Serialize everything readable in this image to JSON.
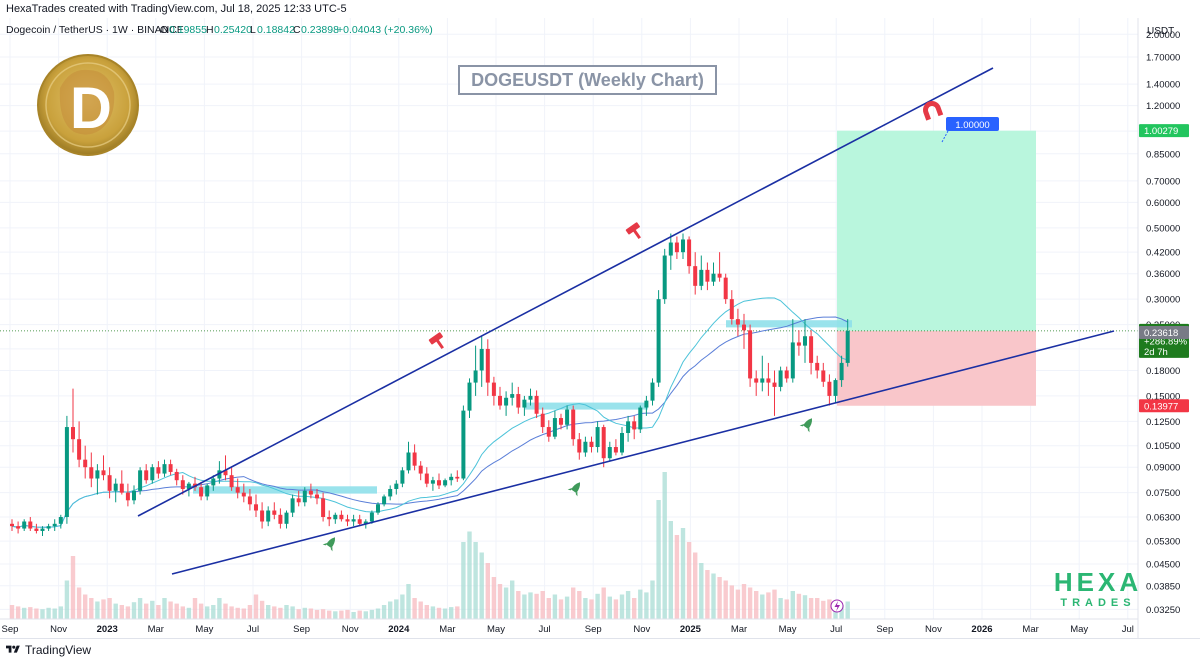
{
  "header": {
    "credit": "HexaTrades created with TradingView.com, Jul 18, 2025 12:33 UTC-5"
  },
  "legend": {
    "symbol": "Dogecoin / TetherUS · 1W · BINANCE",
    "open_label": "O",
    "open": "0.19855",
    "high_label": "H",
    "high": "0.25420",
    "low_label": "L",
    "low": "0.18842",
    "close_label": "C",
    "close": "0.23898",
    "change": "+0.04043 (+20.36%)"
  },
  "chart_title": "DOGEUSDT (Weekly Chart)",
  "currency": "USDT",
  "watermark": {
    "line1": "HEXA",
    "line2": "TRADES"
  },
  "logo_letter": "D",
  "target_label": "1.00000",
  "colors": {
    "up": "#089981",
    "down": "#f23645",
    "trendline": "#1a2fa3",
    "zone": "#8fe0ea",
    "profit": "#b9f6dd",
    "loss": "#f9c6ca",
    "ma_long": "#5b7fd8",
    "ma_short": "#4cc3d9"
  },
  "footer": {
    "brand": "TradingView"
  },
  "chart_data": {
    "type": "candlestick",
    "y_scale": "log",
    "ylim": [
      0.031,
      2.2
    ],
    "y_ticks": [
      "2.00000",
      "1.70000",
      "1.40000",
      "1.20000",
      "1.00000",
      "0.85000",
      "0.70000",
      "0.60000",
      "0.50000",
      "0.42000",
      "0.36000",
      "0.30000",
      "0.25000",
      "0.21000",
      "0.18000",
      "0.15000",
      "0.12500",
      "0.10500",
      "0.09000",
      "0.07500",
      "0.06300",
      "0.05300",
      "0.04500",
      "0.03850",
      "0.03250"
    ],
    "x_ticks": [
      "Sep",
      "Nov",
      "2023",
      "Mar",
      "May",
      "Jul",
      "Sep",
      "Nov",
      "2024",
      "Mar",
      "May",
      "Jul",
      "Sep",
      "Nov",
      "2025",
      "Mar",
      "May",
      "Jul",
      "Sep",
      "Nov",
      "2026",
      "Mar",
      "May",
      "Jul"
    ],
    "price_labels": [
      {
        "value": 1.00279,
        "text": "1.00279",
        "color": "#22c55e"
      },
      {
        "value": 0.23898,
        "text": "0.23898",
        "sub1": "+286.89%",
        "sub2": "2d 7h",
        "color": "#1e7b1e"
      },
      {
        "value": 0.23618,
        "text": "0.23618",
        "color": "#787b86"
      },
      {
        "value": 0.13977,
        "text": "0.13977",
        "color": "#f23645"
      }
    ],
    "trade": {
      "entry": 0.23898,
      "target": 1.00279,
      "stop": 0.13977
    },
    "candles": [
      [
        0.06,
        0.062,
        0.057,
        0.059
      ],
      [
        0.059,
        0.061,
        0.056,
        0.058
      ],
      [
        0.058,
        0.062,
        0.057,
        0.061
      ],
      [
        0.061,
        0.063,
        0.057,
        0.058
      ],
      [
        0.058,
        0.06,
        0.056,
        0.057
      ],
      [
        0.057,
        0.059,
        0.055,
        0.058
      ],
      [
        0.058,
        0.06,
        0.057,
        0.059
      ],
      [
        0.059,
        0.062,
        0.057,
        0.06
      ],
      [
        0.06,
        0.064,
        0.058,
        0.063
      ],
      [
        0.063,
        0.13,
        0.06,
        0.12
      ],
      [
        0.12,
        0.158,
        0.1,
        0.11
      ],
      [
        0.11,
        0.125,
        0.09,
        0.095
      ],
      [
        0.095,
        0.105,
        0.083,
        0.09
      ],
      [
        0.09,
        0.1,
        0.078,
        0.083
      ],
      [
        0.083,
        0.092,
        0.074,
        0.088
      ],
      [
        0.088,
        0.098,
        0.082,
        0.085
      ],
      [
        0.085,
        0.09,
        0.072,
        0.076
      ],
      [
        0.076,
        0.083,
        0.07,
        0.08
      ],
      [
        0.08,
        0.088,
        0.074,
        0.075
      ],
      [
        0.075,
        0.08,
        0.068,
        0.071
      ],
      [
        0.071,
        0.079,
        0.069,
        0.076
      ],
      [
        0.076,
        0.09,
        0.074,
        0.088
      ],
      [
        0.088,
        0.092,
        0.08,
        0.082
      ],
      [
        0.082,
        0.092,
        0.08,
        0.09
      ],
      [
        0.09,
        0.094,
        0.083,
        0.086
      ],
      [
        0.086,
        0.095,
        0.084,
        0.092
      ],
      [
        0.092,
        0.095,
        0.085,
        0.087
      ],
      [
        0.087,
        0.089,
        0.079,
        0.082
      ],
      [
        0.082,
        0.085,
        0.074,
        0.077
      ],
      [
        0.077,
        0.081,
        0.073,
        0.08
      ],
      [
        0.08,
        0.084,
        0.076,
        0.078
      ],
      [
        0.078,
        0.081,
        0.071,
        0.073
      ],
      [
        0.073,
        0.08,
        0.071,
        0.079
      ],
      [
        0.079,
        0.085,
        0.076,
        0.083
      ],
      [
        0.083,
        0.094,
        0.08,
        0.088
      ],
      [
        0.088,
        0.098,
        0.082,
        0.085
      ],
      [
        0.085,
        0.09,
        0.076,
        0.078
      ],
      [
        0.078,
        0.083,
        0.072,
        0.075
      ],
      [
        0.075,
        0.08,
        0.07,
        0.073
      ],
      [
        0.073,
        0.077,
        0.066,
        0.069
      ],
      [
        0.069,
        0.074,
        0.063,
        0.066
      ],
      [
        0.066,
        0.07,
        0.058,
        0.061
      ],
      [
        0.061,
        0.068,
        0.059,
        0.066
      ],
      [
        0.066,
        0.07,
        0.062,
        0.064
      ],
      [
        0.064,
        0.067,
        0.058,
        0.06
      ],
      [
        0.06,
        0.066,
        0.058,
        0.065
      ],
      [
        0.065,
        0.074,
        0.063,
        0.072
      ],
      [
        0.072,
        0.076,
        0.068,
        0.07
      ],
      [
        0.07,
        0.078,
        0.068,
        0.076
      ],
      [
        0.076,
        0.08,
        0.072,
        0.074
      ],
      [
        0.074,
        0.077,
        0.069,
        0.072
      ],
      [
        0.072,
        0.075,
        0.061,
        0.063
      ],
      [
        0.063,
        0.066,
        0.059,
        0.062
      ],
      [
        0.062,
        0.065,
        0.06,
        0.064
      ],
      [
        0.064,
        0.066,
        0.061,
        0.062
      ],
      [
        0.062,
        0.064,
        0.059,
        0.061
      ],
      [
        0.061,
        0.064,
        0.059,
        0.062
      ],
      [
        0.062,
        0.064,
        0.059,
        0.06
      ],
      [
        0.06,
        0.062,
        0.058,
        0.061
      ],
      [
        0.061,
        0.066,
        0.06,
        0.065
      ],
      [
        0.065,
        0.07,
        0.064,
        0.069
      ],
      [
        0.069,
        0.074,
        0.068,
        0.073
      ],
      [
        0.073,
        0.079,
        0.071,
        0.077
      ],
      [
        0.077,
        0.082,
        0.074,
        0.08
      ],
      [
        0.08,
        0.09,
        0.078,
        0.088
      ],
      [
        0.088,
        0.108,
        0.086,
        0.1
      ],
      [
        0.1,
        0.106,
        0.088,
        0.091
      ],
      [
        0.091,
        0.094,
        0.082,
        0.086
      ],
      [
        0.086,
        0.09,
        0.078,
        0.08
      ],
      [
        0.08,
        0.084,
        0.076,
        0.082
      ],
      [
        0.082,
        0.086,
        0.077,
        0.079
      ],
      [
        0.079,
        0.083,
        0.078,
        0.082
      ],
      [
        0.082,
        0.086,
        0.079,
        0.084
      ],
      [
        0.084,
        0.088,
        0.081,
        0.083
      ],
      [
        0.083,
        0.14,
        0.082,
        0.135
      ],
      [
        0.135,
        0.17,
        0.128,
        0.165
      ],
      [
        0.165,
        0.215,
        0.15,
        0.18
      ],
      [
        0.18,
        0.23,
        0.16,
        0.21
      ],
      [
        0.21,
        0.225,
        0.15,
        0.165
      ],
      [
        0.165,
        0.172,
        0.14,
        0.15
      ],
      [
        0.15,
        0.16,
        0.136,
        0.14
      ],
      [
        0.14,
        0.155,
        0.13,
        0.148
      ],
      [
        0.148,
        0.165,
        0.14,
        0.152
      ],
      [
        0.152,
        0.16,
        0.132,
        0.138
      ],
      [
        0.138,
        0.15,
        0.13,
        0.146
      ],
      [
        0.146,
        0.158,
        0.14,
        0.15
      ],
      [
        0.15,
        0.156,
        0.128,
        0.132
      ],
      [
        0.132,
        0.138,
        0.115,
        0.12
      ],
      [
        0.12,
        0.126,
        0.108,
        0.112
      ],
      [
        0.112,
        0.135,
        0.11,
        0.128
      ],
      [
        0.128,
        0.132,
        0.118,
        0.122
      ],
      [
        0.122,
        0.14,
        0.118,
        0.136
      ],
      [
        0.136,
        0.14,
        0.105,
        0.11
      ],
      [
        0.11,
        0.115,
        0.095,
        0.1
      ],
      [
        0.1,
        0.112,
        0.097,
        0.108
      ],
      [
        0.108,
        0.112,
        0.1,
        0.104
      ],
      [
        0.104,
        0.125,
        0.1,
        0.12
      ],
      [
        0.12,
        0.122,
        0.09,
        0.096
      ],
      [
        0.096,
        0.108,
        0.094,
        0.104
      ],
      [
        0.104,
        0.11,
        0.098,
        0.1
      ],
      [
        0.1,
        0.12,
        0.098,
        0.115
      ],
      [
        0.115,
        0.13,
        0.108,
        0.125
      ],
      [
        0.125,
        0.13,
        0.11,
        0.118
      ],
      [
        0.118,
        0.14,
        0.115,
        0.138
      ],
      [
        0.138,
        0.15,
        0.13,
        0.145
      ],
      [
        0.145,
        0.17,
        0.14,
        0.165
      ],
      [
        0.165,
        0.32,
        0.16,
        0.3
      ],
      [
        0.3,
        0.43,
        0.29,
        0.41
      ],
      [
        0.41,
        0.48,
        0.37,
        0.45
      ],
      [
        0.45,
        0.47,
        0.4,
        0.42
      ],
      [
        0.42,
        0.48,
        0.4,
        0.46
      ],
      [
        0.46,
        0.47,
        0.36,
        0.38
      ],
      [
        0.38,
        0.42,
        0.31,
        0.33
      ],
      [
        0.33,
        0.41,
        0.32,
        0.37
      ],
      [
        0.37,
        0.39,
        0.32,
        0.34
      ],
      [
        0.34,
        0.39,
        0.33,
        0.36
      ],
      [
        0.36,
        0.42,
        0.34,
        0.35
      ],
      [
        0.35,
        0.36,
        0.29,
        0.3
      ],
      [
        0.3,
        0.32,
        0.25,
        0.26
      ],
      [
        0.26,
        0.28,
        0.23,
        0.25
      ],
      [
        0.25,
        0.27,
        0.21,
        0.24
      ],
      [
        0.24,
        0.25,
        0.16,
        0.17
      ],
      [
        0.17,
        0.18,
        0.15,
        0.165
      ],
      [
        0.165,
        0.2,
        0.155,
        0.17
      ],
      [
        0.17,
        0.19,
        0.15,
        0.165
      ],
      [
        0.165,
        0.18,
        0.13,
        0.16
      ],
      [
        0.16,
        0.185,
        0.155,
        0.18
      ],
      [
        0.18,
        0.185,
        0.165,
        0.17
      ],
      [
        0.17,
        0.26,
        0.165,
        0.22
      ],
      [
        0.22,
        0.24,
        0.2,
        0.215
      ],
      [
        0.215,
        0.26,
        0.19,
        0.23
      ],
      [
        0.23,
        0.24,
        0.175,
        0.19
      ],
      [
        0.19,
        0.2,
        0.17,
        0.18
      ],
      [
        0.18,
        0.19,
        0.16,
        0.166
      ],
      [
        0.166,
        0.175,
        0.14,
        0.15
      ],
      [
        0.15,
        0.17,
        0.142,
        0.168
      ],
      [
        0.168,
        0.2,
        0.16,
        0.19
      ],
      [
        0.19,
        0.26,
        0.185,
        0.239
      ]
    ],
    "volumes": [
      0.2,
      0.18,
      0.16,
      0.17,
      0.15,
      0.14,
      0.16,
      0.15,
      0.18,
      0.55,
      0.9,
      0.45,
      0.35,
      0.3,
      0.25,
      0.28,
      0.3,
      0.22,
      0.2,
      0.18,
      0.24,
      0.3,
      0.22,
      0.26,
      0.2,
      0.3,
      0.25,
      0.22,
      0.18,
      0.16,
      0.3,
      0.22,
      0.18,
      0.2,
      0.3,
      0.22,
      0.18,
      0.16,
      0.15,
      0.2,
      0.35,
      0.26,
      0.2,
      0.18,
      0.16,
      0.2,
      0.18,
      0.14,
      0.16,
      0.15,
      0.13,
      0.14,
      0.12,
      0.11,
      0.12,
      0.13,
      0.1,
      0.12,
      0.11,
      0.13,
      0.15,
      0.2,
      0.25,
      0.28,
      0.35,
      0.5,
      0.3,
      0.25,
      0.2,
      0.18,
      0.16,
      0.15,
      0.17,
      0.18,
      1.1,
      1.25,
      1.1,
      0.95,
      0.8,
      0.6,
      0.5,
      0.45,
      0.55,
      0.4,
      0.35,
      0.38,
      0.36,
      0.4,
      0.3,
      0.35,
      0.28,
      0.32,
      0.45,
      0.4,
      0.3,
      0.28,
      0.36,
      0.45,
      0.32,
      0.28,
      0.35,
      0.4,
      0.3,
      0.42,
      0.38,
      0.55,
      1.7,
      2.1,
      1.4,
      1.2,
      1.3,
      1.1,
      0.95,
      0.8,
      0.7,
      0.65,
      0.6,
      0.55,
      0.48,
      0.42,
      0.5,
      0.45,
      0.4,
      0.35,
      0.38,
      0.42,
      0.3,
      0.28,
      0.4,
      0.36,
      0.34,
      0.3,
      0.3,
      0.26,
      0.28,
      0.22,
      0.2,
      0.25
    ]
  }
}
